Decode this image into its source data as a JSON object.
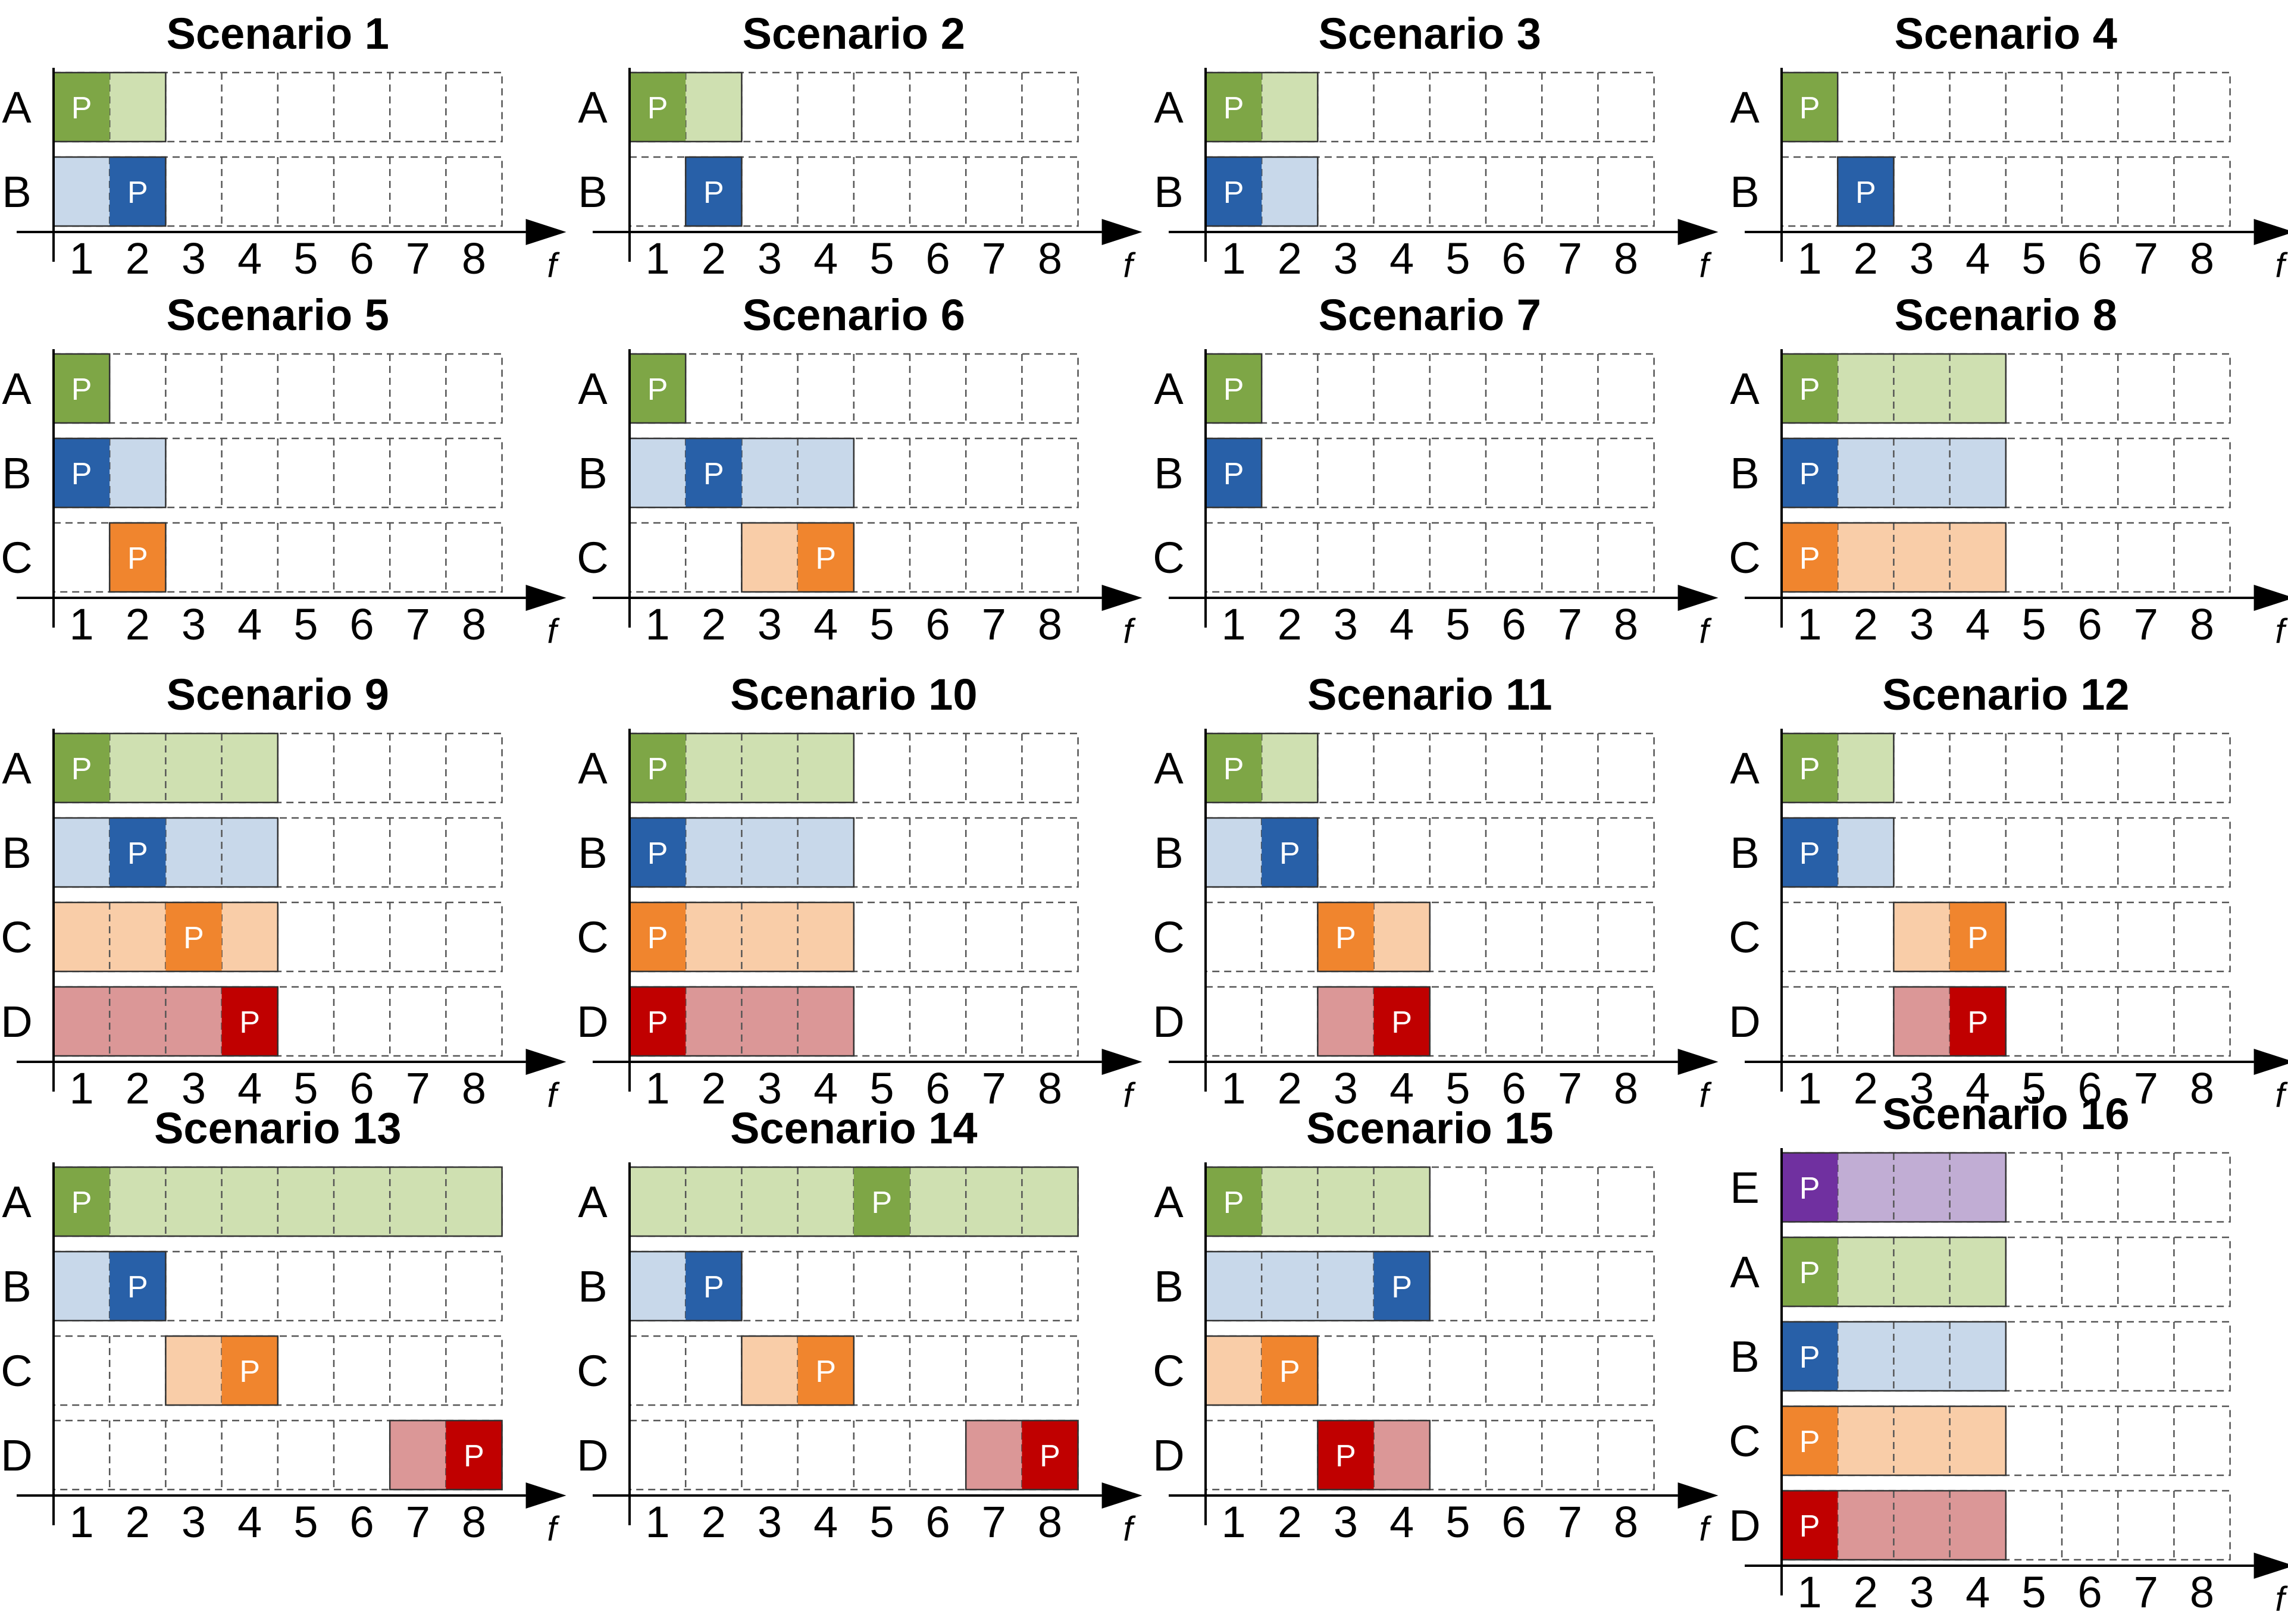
{
  "colors": {
    "A": {
      "dark": "#7ea646",
      "light": "#cfe0b1"
    },
    "B": {
      "dark": "#2860a8",
      "light": "#c8d8ea"
    },
    "C": {
      "dark": "#f0852e",
      "light": "#f9cda8"
    },
    "D": {
      "dark": "#c00000",
      "light": "#db9797"
    },
    "E": {
      "dark": "#7030a0",
      "light": "#c1add4"
    }
  },
  "p_label": "P",
  "axis_label": "f",
  "ticks": [
    "1",
    "2",
    "3",
    "4",
    "5",
    "6",
    "7",
    "8"
  ],
  "scenarios": [
    {
      "title": "Scenario 1",
      "rows": [
        {
          "label": "A",
          "start": 1,
          "end": 2,
          "p": 1
        },
        {
          "label": "B",
          "start": 1,
          "end": 2,
          "p": 2
        }
      ]
    },
    {
      "title": "Scenario 2",
      "rows": [
        {
          "label": "A",
          "start": 1,
          "end": 2,
          "p": 1
        },
        {
          "label": "B",
          "start": 2,
          "end": 2,
          "p": 2
        }
      ]
    },
    {
      "title": "Scenario 3",
      "rows": [
        {
          "label": "A",
          "start": 1,
          "end": 2,
          "p": 1
        },
        {
          "label": "B",
          "start": 1,
          "end": 2,
          "p": 1
        }
      ]
    },
    {
      "title": "Scenario 4",
      "rows": [
        {
          "label": "A",
          "start": 1,
          "end": 1,
          "p": 1
        },
        {
          "label": "B",
          "start": 2,
          "end": 2,
          "p": 2
        }
      ]
    },
    {
      "title": "Scenario 5",
      "rows": [
        {
          "label": "A",
          "start": 1,
          "end": 1,
          "p": 1
        },
        {
          "label": "B",
          "start": 1,
          "end": 2,
          "p": 1
        },
        {
          "label": "C",
          "start": 2,
          "end": 2,
          "p": 2
        }
      ]
    },
    {
      "title": "Scenario 6",
      "rows": [
        {
          "label": "A",
          "start": 1,
          "end": 1,
          "p": 1
        },
        {
          "label": "B",
          "start": 1,
          "end": 4,
          "p": 2
        },
        {
          "label": "C",
          "start": 3,
          "end": 4,
          "p": 4
        }
      ]
    },
    {
      "title": "Scenario 7",
      "rows": [
        {
          "label": "A",
          "start": 1,
          "end": 1,
          "p": 1
        },
        {
          "label": "B",
          "start": 1,
          "end": 1,
          "p": 1
        },
        {
          "label": "C",
          "start": null,
          "end": null,
          "p": null
        }
      ]
    },
    {
      "title": "Scenario 8",
      "rows": [
        {
          "label": "A",
          "start": 1,
          "end": 4,
          "p": 1
        },
        {
          "label": "B",
          "start": 1,
          "end": 4,
          "p": 1
        },
        {
          "label": "C",
          "start": 1,
          "end": 4,
          "p": 1
        }
      ]
    },
    {
      "title": "Scenario 9",
      "rows": [
        {
          "label": "A",
          "start": 1,
          "end": 4,
          "p": 1
        },
        {
          "label": "B",
          "start": 1,
          "end": 4,
          "p": 2
        },
        {
          "label": "C",
          "start": 1,
          "end": 4,
          "p": 3
        },
        {
          "label": "D",
          "start": 1,
          "end": 4,
          "p": 4
        }
      ]
    },
    {
      "title": "Scenario 10",
      "rows": [
        {
          "label": "A",
          "start": 1,
          "end": 4,
          "p": 1
        },
        {
          "label": "B",
          "start": 1,
          "end": 4,
          "p": 1
        },
        {
          "label": "C",
          "start": 1,
          "end": 4,
          "p": 1
        },
        {
          "label": "D",
          "start": 1,
          "end": 4,
          "p": 1
        }
      ]
    },
    {
      "title": "Scenario 11",
      "rows": [
        {
          "label": "A",
          "start": 1,
          "end": 2,
          "p": 1
        },
        {
          "label": "B",
          "start": 1,
          "end": 2,
          "p": 2
        },
        {
          "label": "C",
          "start": 3,
          "end": 4,
          "p": 3
        },
        {
          "label": "D",
          "start": 3,
          "end": 4,
          "p": 4
        }
      ]
    },
    {
      "title": "Scenario 12",
      "rows": [
        {
          "label": "A",
          "start": 1,
          "end": 2,
          "p": 1
        },
        {
          "label": "B",
          "start": 1,
          "end": 2,
          "p": 1
        },
        {
          "label": "C",
          "start": 3,
          "end": 4,
          "p": 4
        },
        {
          "label": "D",
          "start": 3,
          "end": 4,
          "p": 4
        }
      ]
    },
    {
      "title": "Scenario 13",
      "rows": [
        {
          "label": "A",
          "start": 1,
          "end": 8,
          "p": 1
        },
        {
          "label": "B",
          "start": 1,
          "end": 2,
          "p": 2
        },
        {
          "label": "C",
          "start": 3,
          "end": 4,
          "p": 4
        },
        {
          "label": "D",
          "start": 7,
          "end": 8,
          "p": 8
        }
      ]
    },
    {
      "title": "Scenario 14",
      "rows": [
        {
          "label": "A",
          "start": 1,
          "end": 8,
          "p": 5
        },
        {
          "label": "B",
          "start": 1,
          "end": 2,
          "p": 2
        },
        {
          "label": "C",
          "start": 3,
          "end": 4,
          "p": 4
        },
        {
          "label": "D",
          "start": 7,
          "end": 8,
          "p": 8
        }
      ]
    },
    {
      "title": "Scenario 15",
      "rows": [
        {
          "label": "A",
          "start": 1,
          "end": 4,
          "p": 1
        },
        {
          "label": "B",
          "start": 1,
          "end": 4,
          "p": 4
        },
        {
          "label": "C",
          "start": 1,
          "end": 2,
          "p": 2
        },
        {
          "label": "D",
          "start": 3,
          "end": 4,
          "p": 3
        }
      ]
    },
    {
      "title": "Scenario 16",
      "rows": [
        {
          "label": "E",
          "start": 1,
          "end": 4,
          "p": 1
        },
        {
          "label": "A",
          "start": 1,
          "end": 4,
          "p": 1
        },
        {
          "label": "B",
          "start": 1,
          "end": 4,
          "p": 1
        },
        {
          "label": "C",
          "start": 1,
          "end": 4,
          "p": 1
        },
        {
          "label": "D",
          "start": 1,
          "end": 4,
          "p": 1
        }
      ]
    }
  ]
}
